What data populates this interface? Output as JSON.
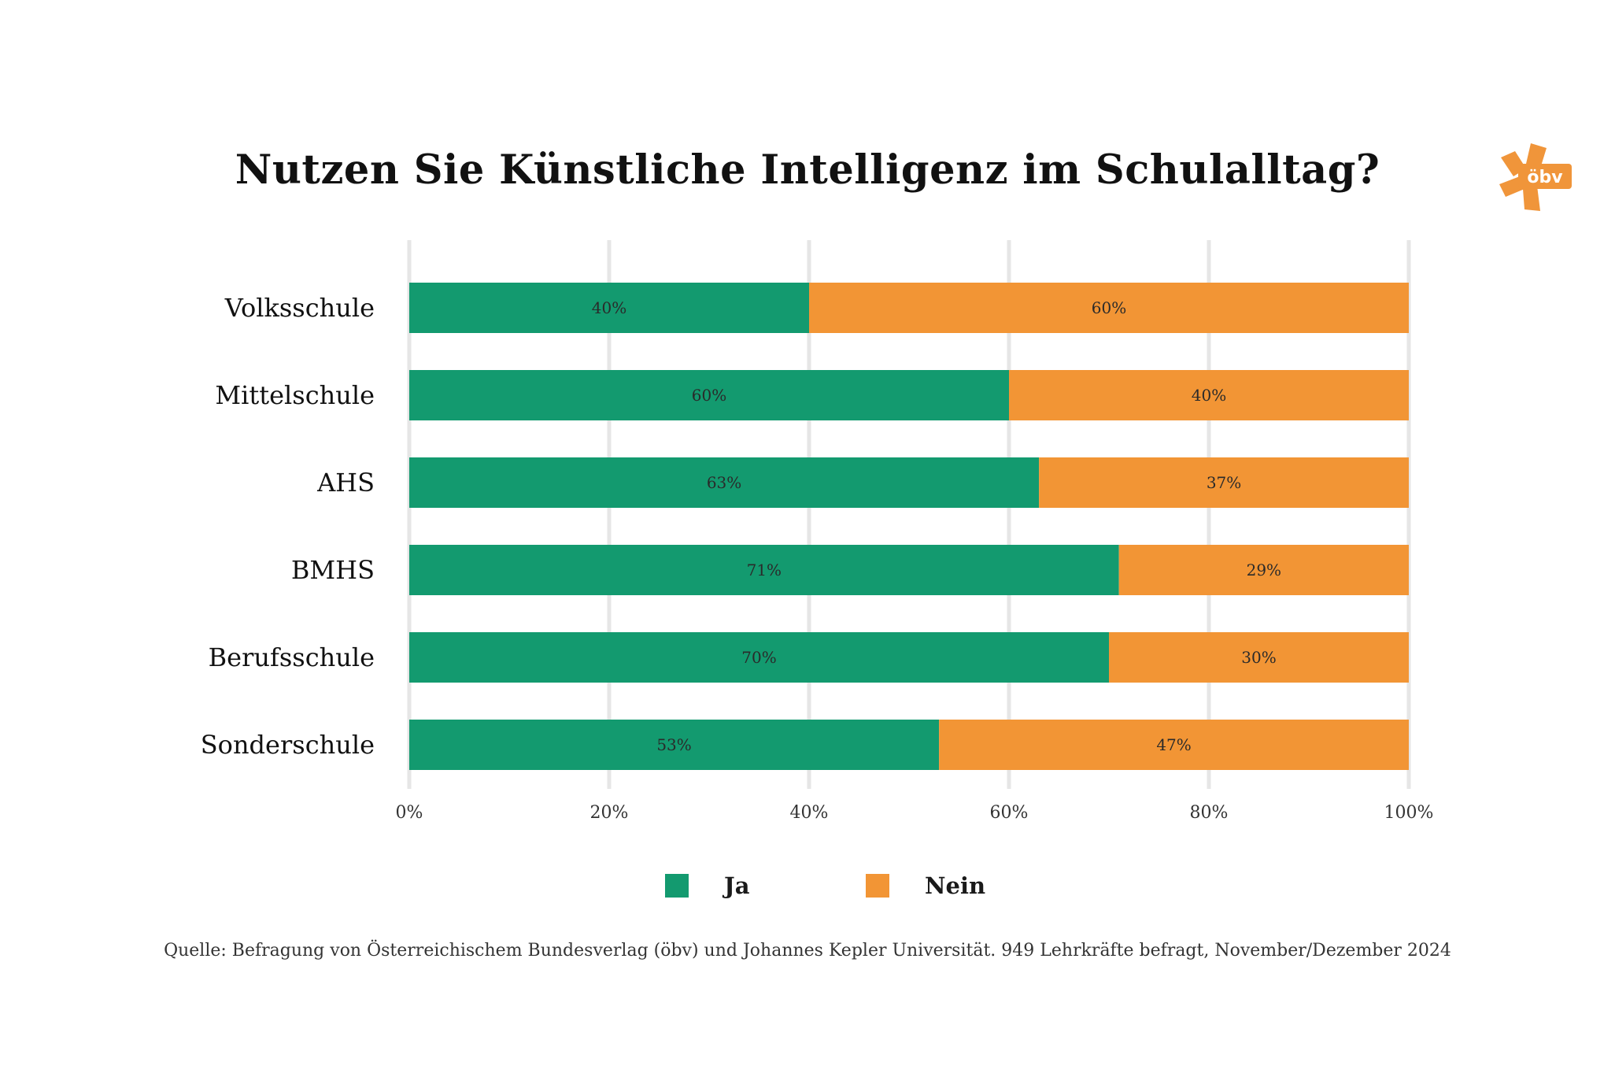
{
  "title": "Nutzen Sie Künstliche Intelligenz im Schulalltag?",
  "logo": {
    "text": "öbv",
    "color": "#f0953a",
    "icon": "obv-asterisk-logo"
  },
  "chart_data": {
    "type": "bar",
    "orientation": "horizontal",
    "stacked": true,
    "categories": [
      "Volksschule",
      "Mittelschule",
      "AHS",
      "BMHS",
      "Berufsschule",
      "Sonderschule"
    ],
    "series": [
      {
        "name": "Ja",
        "values": [
          40,
          60,
          63,
          71,
          70,
          53
        ],
        "labels": [
          "40%",
          "60%",
          "63%",
          "71%",
          "70%",
          "53%"
        ],
        "color": "#139a6f"
      },
      {
        "name": "Nein",
        "values": [
          60,
          40,
          37,
          29,
          30,
          47
        ],
        "labels": [
          "60%",
          "40%",
          "37%",
          "29%",
          "30%",
          "47%"
        ],
        "color": "#f29535"
      }
    ],
    "xlim": [
      0,
      100
    ],
    "xticks": [
      0,
      20,
      40,
      60,
      80,
      100
    ],
    "xtick_labels": [
      "0%",
      "20%",
      "40%",
      "60%",
      "80%",
      "100%"
    ],
    "grid": true,
    "grid_color": "#e6e6e6",
    "legend_position": "bottom"
  },
  "source": "Quelle: Befragung von Österreichischem Bundesverlag (öbv) und Johannes Kepler Universität. 949 Lehrkräfte befragt, November/Dezember 2024"
}
